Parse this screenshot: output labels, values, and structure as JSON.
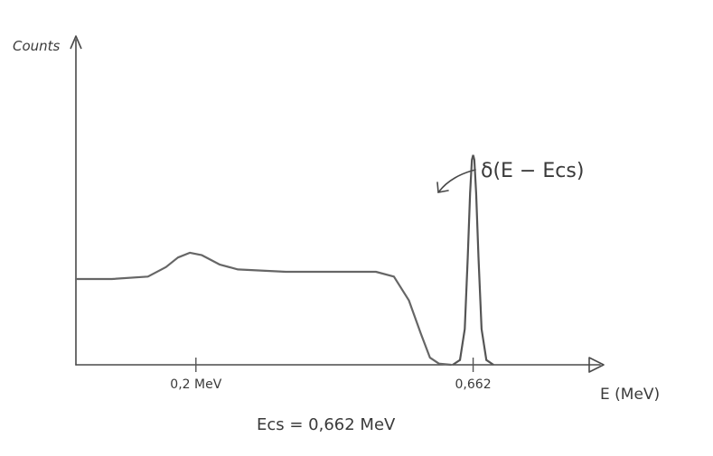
{
  "chart_data": {
    "type": "line",
    "title": "",
    "ylabel": "Counts",
    "xlabel": "E (MeV)",
    "xlim": [
      0,
      1.0
    ],
    "ylim": [
      0,
      1.0
    ],
    "grid": false,
    "x_ticks": [
      {
        "value": 0.2,
        "label": "0,2 MeV"
      },
      {
        "value": 0.662,
        "label": "0,662"
      }
    ],
    "series": [
      {
        "name": "",
        "points": [
          [
            0.0,
            0.36
          ],
          [
            0.06,
            0.36
          ],
          [
            0.12,
            0.37
          ],
          [
            0.15,
            0.41
          ],
          [
            0.17,
            0.45
          ],
          [
            0.19,
            0.47
          ],
          [
            0.21,
            0.46
          ],
          [
            0.24,
            0.42
          ],
          [
            0.27,
            0.4
          ],
          [
            0.35,
            0.39
          ],
          [
            0.43,
            0.39
          ],
          [
            0.5,
            0.39
          ],
          [
            0.53,
            0.37
          ],
          [
            0.555,
            0.27
          ],
          [
            0.575,
            0.13
          ],
          [
            0.59,
            0.03
          ],
          [
            0.605,
            0.005
          ],
          [
            0.625,
            0.0
          ]
        ]
      },
      {
        "name": "",
        "points": [
          [
            0.628,
            0.0
          ],
          [
            0.64,
            0.02
          ],
          [
            0.648,
            0.15
          ],
          [
            0.653,
            0.45
          ],
          [
            0.657,
            0.72
          ],
          [
            0.66,
            0.86
          ],
          [
            0.662,
            0.88
          ],
          [
            0.664,
            0.86
          ],
          [
            0.667,
            0.72
          ],
          [
            0.671,
            0.45
          ],
          [
            0.676,
            0.15
          ],
          [
            0.684,
            0.02
          ],
          [
            0.696,
            0.0
          ]
        ]
      }
    ],
    "annotations": [
      {
        "text": "δ(E − Ecs)",
        "x": 0.662,
        "y": 0.88
      },
      {
        "text": "Ecs = 0,662 MeV"
      }
    ]
  }
}
